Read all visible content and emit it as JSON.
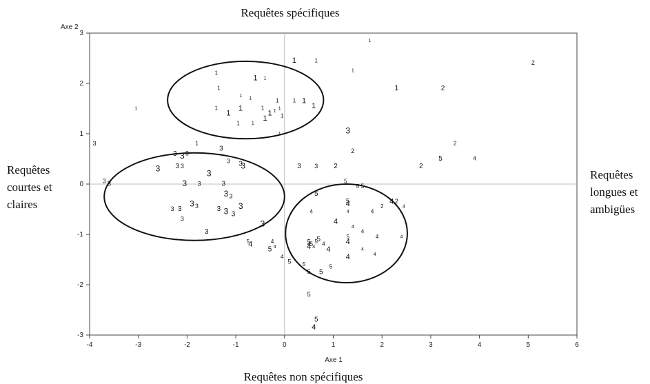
{
  "chart_data": {
    "type": "scatter",
    "xlabel": "Axe 1",
    "ylabel": "Axe 2",
    "xlim": [
      -4,
      6
    ],
    "ylim": [
      -3,
      3
    ],
    "xticks": [
      -4,
      -3,
      -2,
      -1,
      0,
      1,
      2,
      3,
      4,
      5,
      6
    ],
    "yticks": [
      -3,
      -2,
      -1,
      0,
      1,
      2,
      3
    ],
    "grid": false,
    "reference_lines": {
      "x": 0,
      "y": 0
    },
    "quadrant_labels": {
      "top": "Requêtes spécifiques",
      "bottom": "Requêtes non spécifiques",
      "left": [
        "Requêtes",
        "courtes et",
        "claires"
      ],
      "right": [
        "Requêtes",
        "longues et",
        "ambigües"
      ]
    },
    "series": [
      {
        "name": "1",
        "points": [
          [
            1.75,
            2.85
          ],
          [
            0.65,
            2.45
          ],
          [
            0.2,
            2.45
          ],
          [
            1.4,
            2.25
          ],
          [
            -1.4,
            2.2
          ],
          [
            -0.6,
            2.1
          ],
          [
            -0.4,
            2.1
          ],
          [
            -1.35,
            1.9
          ],
          [
            2.3,
            1.9
          ],
          [
            -0.9,
            1.75
          ],
          [
            0.2,
            1.65
          ],
          [
            0.4,
            1.65
          ],
          [
            -0.7,
            1.7
          ],
          [
            -0.15,
            1.65
          ],
          [
            0.6,
            1.55
          ],
          [
            -3.05,
            1.5
          ],
          [
            -1.4,
            1.5
          ],
          [
            -1.15,
            1.4
          ],
          [
            -0.2,
            1.45
          ],
          [
            -0.45,
            1.5
          ],
          [
            -0.3,
            1.4
          ],
          [
            -0.1,
            1.5
          ],
          [
            -0.05,
            1.35
          ],
          [
            -0.4,
            1.3
          ],
          [
            -0.65,
            1.2
          ],
          [
            -0.95,
            1.2
          ],
          [
            -0.9,
            1.5
          ],
          [
            -0.1,
            1.0
          ],
          [
            -1.8,
            0.8
          ]
        ]
      },
      {
        "name": "2",
        "points": [
          [
            5.1,
            2.4
          ],
          [
            3.25,
            1.9
          ],
          [
            3.5,
            0.8
          ],
          [
            1.4,
            0.65
          ],
          [
            2.8,
            0.35
          ],
          [
            2.0,
            -0.45
          ],
          [
            2.3,
            -0.35
          ],
          [
            1.05,
            0.35
          ]
        ]
      },
      {
        "name": "3",
        "points": [
          [
            1.3,
            1.05
          ],
          [
            -3.9,
            0.8
          ],
          [
            -1.3,
            0.7
          ],
          [
            -2.1,
            0.55
          ],
          [
            -2.0,
            0.6
          ],
          [
            -2.25,
            0.6
          ],
          [
            -2.6,
            0.3
          ],
          [
            -2.1,
            0.35
          ],
          [
            -2.2,
            0.35
          ],
          [
            -1.55,
            0.2
          ],
          [
            -1.15,
            0.45
          ],
          [
            -0.9,
            0.4
          ],
          [
            -0.85,
            0.35
          ],
          [
            -3.7,
            0.05
          ],
          [
            -3.6,
            0.0
          ],
          [
            -2.05,
            0.0
          ],
          [
            -1.75,
            0.0
          ],
          [
            -1.25,
            0.0
          ],
          [
            -1.2,
            -0.2
          ],
          [
            -1.1,
            -0.25
          ],
          [
            -1.35,
            -0.5
          ],
          [
            -1.2,
            -0.55
          ],
          [
            -1.8,
            -0.45
          ],
          [
            -2.15,
            -0.5
          ],
          [
            -1.9,
            -0.4
          ],
          [
            -2.3,
            -0.5
          ],
          [
            -1.05,
            -0.6
          ],
          [
            -0.9,
            -0.45
          ],
          [
            -2.1,
            -0.7
          ],
          [
            -1.6,
            -0.95
          ],
          [
            -0.45,
            -0.8
          ],
          [
            0.65,
            0.35
          ],
          [
            0.3,
            0.35
          ]
        ]
      },
      {
        "name": "4",
        "points": [
          [
            3.9,
            0.5
          ],
          [
            1.3,
            -0.4
          ],
          [
            1.3,
            -0.55
          ],
          [
            1.8,
            -0.55
          ],
          [
            2.2,
            -0.35
          ],
          [
            2.45,
            -0.45
          ],
          [
            0.55,
            -0.55
          ],
          [
            1.05,
            -0.75
          ],
          [
            1.4,
            -0.85
          ],
          [
            1.6,
            -0.95
          ],
          [
            1.3,
            -1.15
          ],
          [
            1.6,
            -1.3
          ],
          [
            0.5,
            -1.2
          ],
          [
            0.5,
            -1.25
          ],
          [
            0.6,
            -1.25
          ],
          [
            0.8,
            -1.2
          ],
          [
            0.9,
            -1.3
          ],
          [
            2.4,
            -1.05
          ],
          [
            1.9,
            -1.05
          ],
          [
            1.3,
            -1.45
          ],
          [
            1.85,
            -1.4
          ],
          [
            -0.25,
            -1.15
          ],
          [
            -0.7,
            -1.2
          ],
          [
            -0.2,
            -1.25
          ],
          [
            -0.05,
            -1.45
          ],
          [
            0.6,
            -2.85
          ]
        ]
      },
      {
        "name": "5",
        "points": [
          [
            3.2,
            0.5
          ],
          [
            1.25,
            0.05
          ],
          [
            1.6,
            -0.05
          ],
          [
            1.3,
            -0.35
          ],
          [
            1.3,
            -1.05
          ],
          [
            0.5,
            -1.15
          ],
          [
            0.7,
            -1.1
          ],
          [
            0.65,
            -1.15
          ],
          [
            0.55,
            -1.2
          ],
          [
            0.65,
            -0.2
          ],
          [
            -0.75,
            -1.15
          ],
          [
            0.1,
            -1.55
          ],
          [
            -0.3,
            -1.3
          ],
          [
            0.4,
            -1.6
          ],
          [
            0.5,
            -1.75
          ],
          [
            0.75,
            -1.75
          ],
          [
            0.95,
            -1.65
          ],
          [
            0.5,
            -2.2
          ],
          [
            0.65,
            -2.7
          ],
          [
            1.5,
            -0.05
          ]
        ]
      }
    ]
  },
  "ellipses": [
    {
      "name": "ellipse-top",
      "cx": -0.8,
      "cy": 1.67,
      "rx": 1.6,
      "ry": 0.77
    },
    {
      "name": "ellipse-left",
      "cx": -1.85,
      "cy": -0.25,
      "rx": 1.85,
      "ry": 0.87
    },
    {
      "name": "ellipse-right",
      "cx": 1.27,
      "cy": -0.98,
      "rx": 1.25,
      "ry": 0.98
    }
  ]
}
